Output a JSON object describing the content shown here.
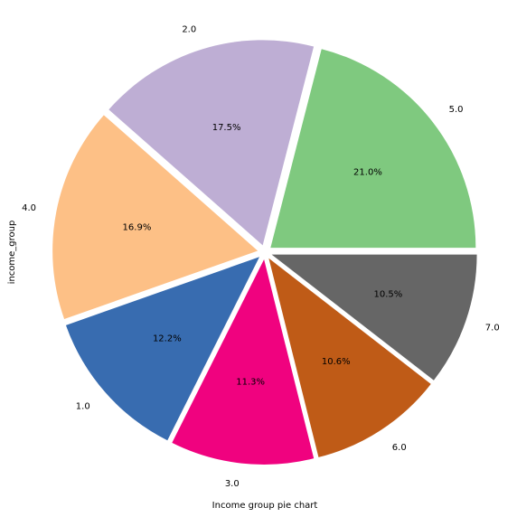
{
  "chart_data": {
    "type": "pie",
    "categories": [
      "5.0",
      "2.0",
      "4.0",
      "1.0",
      "3.0",
      "6.0",
      "7.0"
    ],
    "values": [
      21.0,
      17.5,
      16.9,
      12.2,
      11.3,
      10.6,
      10.5
    ],
    "value_labels": [
      "21.0%",
      "17.5%",
      "16.9%",
      "12.2%",
      "11.3%",
      "10.6%",
      "10.5%"
    ],
    "colors": [
      "#7fc97f",
      "#beaed4",
      "#fdc086",
      "#386cb0",
      "#f0027f",
      "#bf5b17",
      "#666666"
    ],
    "xlabel": "Income group pie chart",
    "ylabel": "income_group"
  }
}
